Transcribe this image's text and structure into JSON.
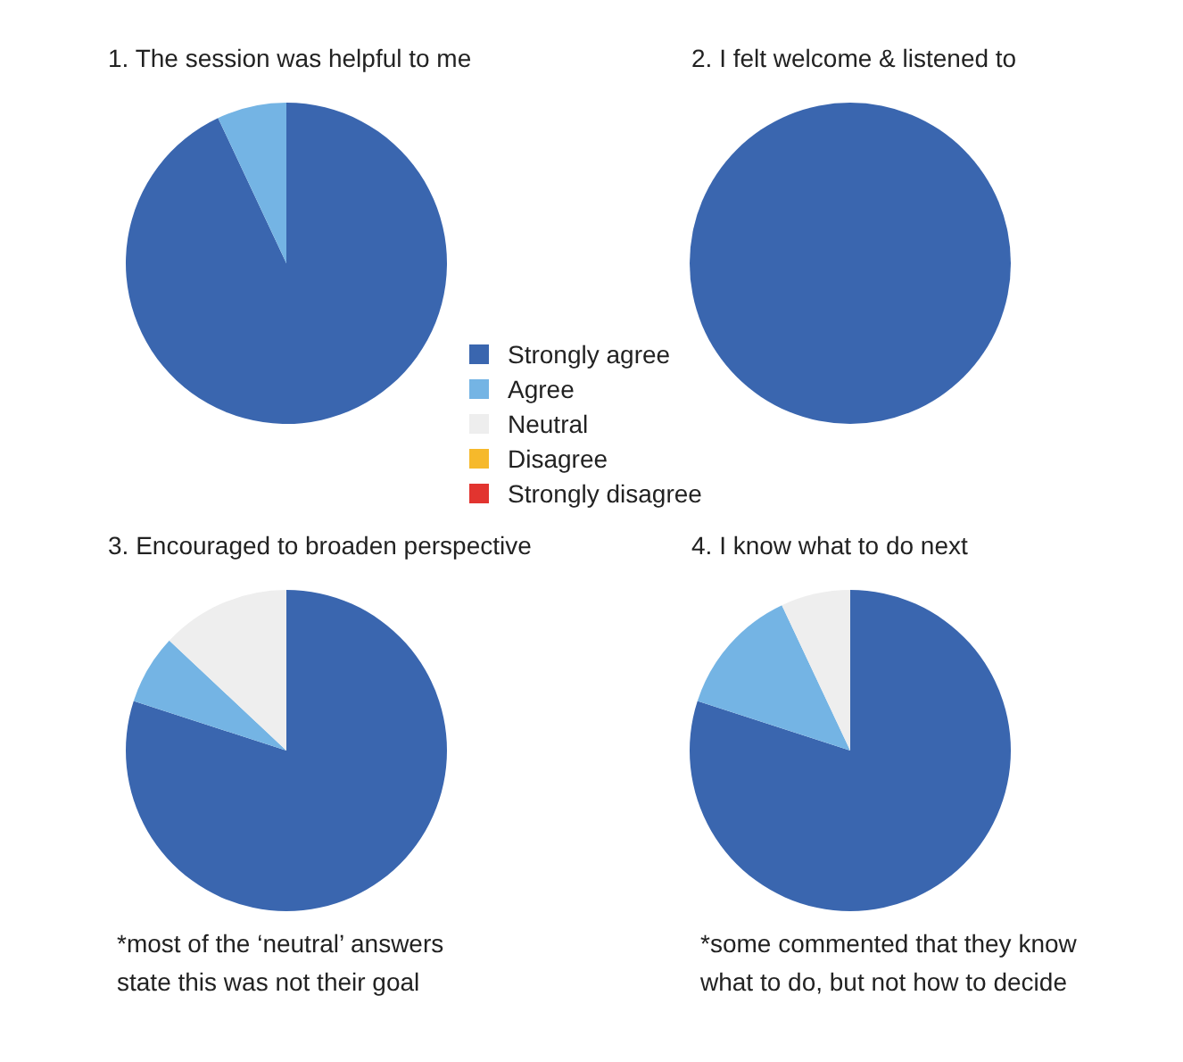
{
  "chart_data": [
    {
      "type": "pie",
      "title": "1. The session was helpful to me",
      "categories": [
        "Strongly agree",
        "Agree",
        "Neutral",
        "Disagree",
        "Strongly disagree"
      ],
      "values": [
        93,
        7,
        0,
        0,
        0
      ],
      "colors": [
        "#3a66af",
        "#74b4e4",
        "#eeeeee",
        "#f6b92b",
        "#e2342f"
      ],
      "legend": "bottom right"
    },
    {
      "type": "pie",
      "title": "2. I felt welcome & listened to",
      "categories": [
        null,
        null,
        null,
        null,
        null
      ],
      "values": [
        100,
        0,
        0,
        0,
        0
      ],
      "colors": [
        "#3a66af",
        "#74b4e4",
        "#eeeeee",
        "#f6b92b",
        "#e2342f"
      ]
    },
    {
      "type": "pie",
      "title": "3. Encouraged to broaden perspective",
      "categories": [
        null,
        null,
        null,
        null,
        null
      ],
      "values": [
        80,
        7,
        13,
        0,
        0
      ],
      "colors": [
        "#3a66af",
        "#74b4e4",
        "#eeeeee",
        "#f6b92b",
        "#e2342f"
      ],
      "annotations": [
        "*most of the ‘neutral’ answers\nstate this was not their goal"
      ]
    },
    {
      "type": "pie",
      "title": "4. I know what to do next",
      "categories": [
        null,
        null,
        null,
        null,
        null
      ],
      "values": [
        80,
        13,
        7,
        0,
        0
      ],
      "colors": [
        "#3a66af",
        "#74b4e4",
        "#eeeeee",
        "#f6b92b",
        "#e2342f"
      ],
      "annotations": [
        "*some commented that they know\nwhat to do, but not how to decide"
      ]
    }
  ]
}
